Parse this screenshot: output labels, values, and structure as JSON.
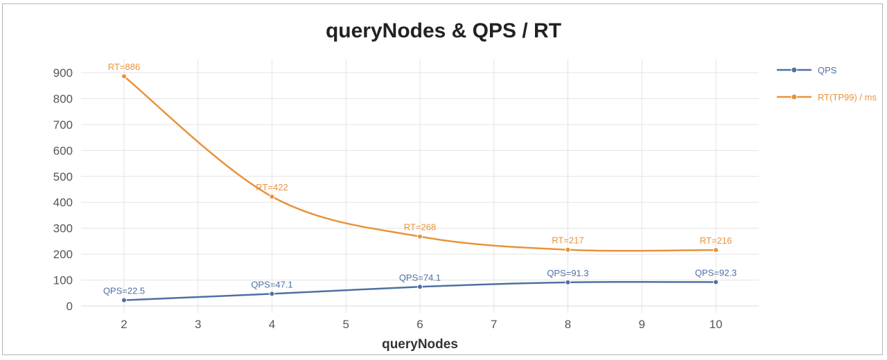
{
  "chart_data": {
    "type": "line",
    "title": "queryNodes & QPS / RT",
    "xlabel": "queryNodes",
    "ylabel": "",
    "x_ticks": [
      2,
      3,
      4,
      5,
      6,
      7,
      8,
      9,
      10
    ],
    "y_ticks": [
      0,
      100,
      200,
      300,
      400,
      500,
      600,
      700,
      800,
      900
    ],
    "xlim": [
      1.4,
      10.6
    ],
    "ylim": [
      0,
      900
    ],
    "grid": true,
    "legend_position": "right",
    "x": [
      2,
      4,
      6,
      8,
      10
    ],
    "series": [
      {
        "name": "QPS",
        "color": "#4e6fa3",
        "values": [
          22.5,
          47.1,
          74.1,
          91.3,
          92.3
        ],
        "labels": [
          "QPS=22.5",
          "QPS=47.1",
          "QPS=74.1",
          "QPS=91.3",
          "QPS=92.3"
        ]
      },
      {
        "name": "RT(TP99) / ms",
        "color": "#e8923a",
        "values": [
          886,
          422,
          268,
          217,
          216
        ],
        "labels": [
          "RT=886",
          "RT=422",
          "RT=268",
          "RT=217",
          "RT=216"
        ]
      }
    ]
  }
}
